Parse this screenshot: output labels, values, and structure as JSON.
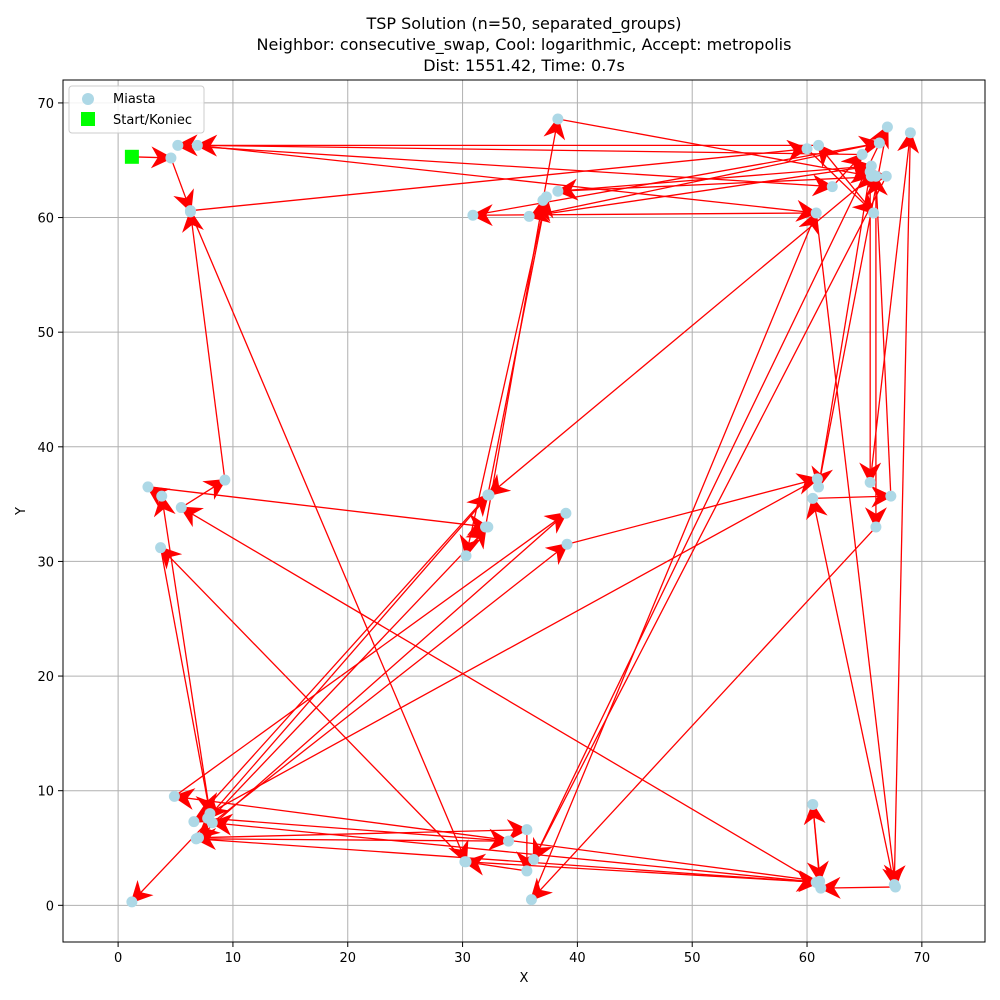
{
  "chart_data": {
    "type": "scatter",
    "title_lines": [
      "TSP Solution (n=50, separated_groups)",
      "Neighbor: consecutive_swap, Cool: logarithmic, Accept: metropolis",
      "Dist: 1551.42, Time: 0.7s"
    ],
    "xlabel": "X",
    "ylabel": "Y",
    "xlim": [
      -4.8,
      75.5
    ],
    "ylim": [
      -3.2,
      72.0
    ],
    "xticks": [
      0,
      10,
      20,
      30,
      40,
      50,
      60,
      70
    ],
    "yticks": [
      0,
      10,
      20,
      30,
      40,
      50,
      60,
      70
    ],
    "grid": true,
    "legend": {
      "placement": "top-left",
      "entries": [
        {
          "label": "Miasta",
          "marker": "circle",
          "color": "#add8e6"
        },
        {
          "label": "Start/Koniec",
          "marker": "square",
          "color": "#00ff00"
        }
      ]
    },
    "start": {
      "x": 1.2,
      "y": 65.3
    },
    "route_color": "#ff0000",
    "cities_color": "#add8e6",
    "route": [
      [
        1.2,
        65.3
      ],
      [
        4.6,
        65.2
      ],
      [
        6.3,
        60.6
      ],
      [
        60.0,
        66.0
      ],
      [
        65.8,
        60.4
      ],
      [
        61.0,
        66.3
      ],
      [
        5.2,
        66.3
      ],
      [
        62.2,
        62.7
      ],
      [
        64.8,
        65.5
      ],
      [
        6.9,
        66.3
      ],
      [
        60.8,
        60.4
      ],
      [
        30.9,
        60.2
      ],
      [
        66.3,
        66.5
      ],
      [
        35.8,
        60.1
      ],
      [
        65.6,
        64.5
      ],
      [
        38.3,
        62.3
      ],
      [
        66.9,
        63.6
      ],
      [
        36.2,
        4.0
      ],
      [
        67.0,
        67.9
      ],
      [
        61.0,
        36.5
      ],
      [
        65.5,
        64.0
      ],
      [
        65.5,
        36.9
      ],
      [
        69.0,
        67.4
      ],
      [
        67.6,
        1.8
      ],
      [
        60.5,
        35.5
      ],
      [
        67.3,
        35.7
      ],
      [
        66.0,
        63.6
      ],
      [
        66.0,
        33.0
      ],
      [
        36.0,
        0.5
      ],
      [
        60.8,
        60.4
      ],
      [
        67.7,
        1.6
      ],
      [
        61.2,
        1.5
      ],
      [
        60.5,
        8.8
      ],
      [
        61.1,
        2.1
      ],
      [
        4.9,
        9.5
      ],
      [
        39.0,
        34.2
      ],
      [
        7.0,
        5.9
      ],
      [
        35.6,
        6.6
      ],
      [
        35.6,
        3.0
      ],
      [
        30.2,
        3.8
      ],
      [
        61.0,
        2.0
      ],
      [
        8.2,
        7.2
      ],
      [
        39.1,
        31.5
      ],
      [
        60.9,
        37.2
      ],
      [
        6.6,
        7.3
      ],
      [
        32.2,
        35.8
      ],
      [
        37.3,
        61.8
      ],
      [
        30.3,
        30.5
      ],
      [
        32.0,
        33.0
      ],
      [
        37.0,
        61.5
      ],
      [
        38.3,
        68.6
      ],
      [
        65.6,
        63.6
      ],
      [
        32.3,
        35.8
      ],
      [
        7.8,
        7.6
      ],
      [
        34.0,
        5.6
      ],
      [
        6.8,
        5.8
      ],
      [
        60.8,
        2.0
      ],
      [
        5.5,
        34.7
      ],
      [
        9.3,
        37.1
      ],
      [
        6.3,
        60.5
      ],
      [
        30.3,
        3.8
      ],
      [
        3.7,
        31.2
      ],
      [
        8.0,
        8.0
      ],
      [
        3.8,
        35.7
      ],
      [
        2.6,
        36.5
      ],
      [
        32.2,
        33.0
      ],
      [
        1.2,
        0.3
      ]
    ]
  }
}
